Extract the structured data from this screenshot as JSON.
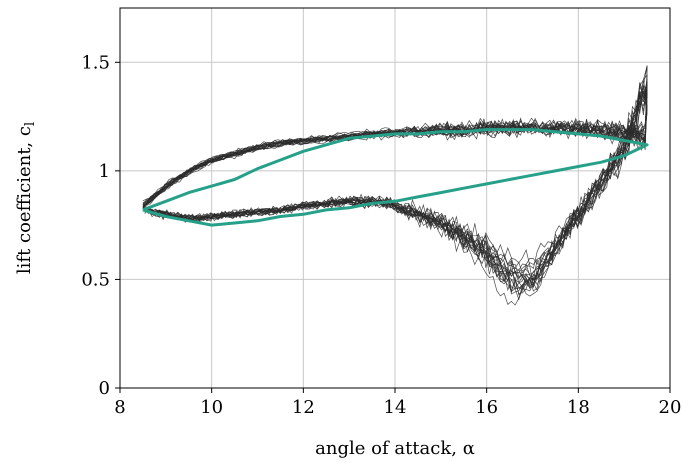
{
  "chart_data": {
    "type": "line",
    "xlabel": "angle of attack, α",
    "ylabel": "lift coefficient, c",
    "ylabel_sub": "l",
    "xlim": [
      8,
      20
    ],
    "ylim": [
      0,
      1.75
    ],
    "xticks": [
      8,
      10,
      12,
      14,
      16,
      18,
      20
    ],
    "xtick_labels": [
      "8",
      "10",
      "12",
      "14",
      "16",
      "18",
      "20"
    ],
    "yticks": [
      0,
      0.5,
      1,
      1.5
    ],
    "ytick_labels": [
      "0",
      "0.5",
      "1",
      "1.5"
    ],
    "grid": true,
    "colors": {
      "mean": "#26a088",
      "cycles": "#2b2b2b",
      "grid": "#c8c8c8"
    },
    "mean_curve": {
      "upstroke": {
        "x": [
          8.5,
          9.0,
          9.5,
          10.0,
          10.5,
          11.0,
          11.5,
          12.0,
          12.5,
          13.0,
          13.5,
          14.0,
          14.5,
          15.0,
          15.5,
          16.0,
          16.5,
          17.0,
          17.5,
          18.0,
          18.5,
          19.0,
          19.5
        ],
        "y": [
          0.82,
          0.86,
          0.9,
          0.93,
          0.96,
          1.01,
          1.05,
          1.09,
          1.12,
          1.15,
          1.16,
          1.17,
          1.17,
          1.18,
          1.18,
          1.19,
          1.19,
          1.19,
          1.18,
          1.17,
          1.16,
          1.14,
          1.12
        ]
      },
      "downstroke": {
        "x": [
          19.5,
          19.0,
          18.5,
          18.0,
          17.5,
          17.0,
          16.5,
          16.0,
          15.5,
          15.0,
          14.5,
          14.0,
          13.5,
          13.0,
          12.5,
          12.0,
          11.5,
          11.0,
          10.5,
          10.0,
          9.5,
          9.0,
          8.5
        ],
        "y": [
          1.12,
          1.07,
          1.04,
          1.02,
          1.0,
          0.98,
          0.96,
          0.94,
          0.92,
          0.9,
          0.88,
          0.86,
          0.85,
          0.83,
          0.82,
          0.8,
          0.79,
          0.77,
          0.76,
          0.75,
          0.77,
          0.79,
          0.82
        ]
      }
    },
    "cycles": {
      "count": 20,
      "upstroke": {
        "x": [
          8.5,
          9.0,
          9.5,
          10.0,
          10.5,
          11.0,
          11.5,
          12.0,
          12.5,
          13.0,
          13.5,
          14.0,
          14.5,
          15.0,
          15.5,
          16.0,
          16.5,
          17.0,
          17.5,
          18.0,
          18.5,
          19.0,
          19.5
        ],
        "y": [
          0.84,
          0.93,
          1.0,
          1.05,
          1.08,
          1.11,
          1.13,
          1.14,
          1.15,
          1.16,
          1.17,
          1.18,
          1.18,
          1.19,
          1.19,
          1.2,
          1.2,
          1.2,
          1.2,
          1.2,
          1.19,
          1.18,
          1.16
        ]
      },
      "downstroke": {
        "x": [
          19.5,
          19.0,
          18.5,
          18.0,
          17.5,
          17.0,
          16.5,
          16.0,
          15.5,
          15.0,
          14.5,
          14.0,
          13.5,
          13.0,
          12.5,
          12.0,
          11.5,
          11.0,
          10.5,
          10.0,
          9.5,
          9.0,
          8.5
        ],
        "y": [
          1.4,
          1.1,
          0.95,
          0.8,
          0.65,
          0.5,
          0.52,
          0.62,
          0.7,
          0.76,
          0.8,
          0.84,
          0.86,
          0.86,
          0.85,
          0.84,
          0.82,
          0.81,
          0.8,
          0.79,
          0.78,
          0.8,
          0.82
        ]
      },
      "spread": {
        "x": [
          8.5,
          10.0,
          12.0,
          14.0,
          15.0,
          16.0,
          17.0,
          18.0,
          19.0,
          19.5
        ],
        "y": [
          0.03,
          0.03,
          0.03,
          0.05,
          0.08,
          0.1,
          0.09,
          0.1,
          0.12,
          0.18
        ]
      }
    }
  }
}
